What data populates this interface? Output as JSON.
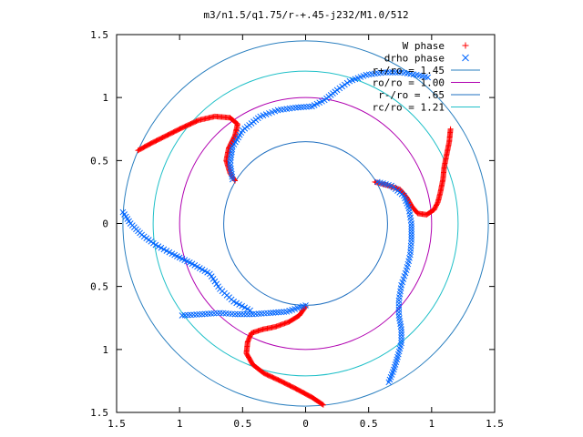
{
  "chart_data": {
    "type": "scatter",
    "title": "m3/n1.5/q1.75/r-+.45-j232/M1.0/512",
    "xlabel": "",
    "ylabel": "",
    "xlim": [
      -1.5,
      1.5
    ],
    "ylim": [
      -1.5,
      1.5
    ],
    "xticks": [
      "1.5",
      "1",
      "0.5",
      "0",
      "0.5",
      "1",
      "1.5"
    ],
    "yticks": [
      "1.5",
      "1",
      "0.5",
      "0",
      "0.5",
      "1",
      "1.5"
    ],
    "grid": false,
    "legend_position": "top-right",
    "series": [
      {
        "name": "W phase",
        "kind": "points",
        "marker": "plus",
        "color": "#ff0000",
        "curves": [
          [
            [
              0.14,
              -1.44
            ],
            [
              0.05,
              -1.38
            ],
            [
              -0.08,
              -1.31
            ],
            [
              -0.2,
              -1.25
            ],
            [
              -0.33,
              -1.19
            ],
            [
              -0.42,
              -1.12
            ],
            [
              -0.47,
              -1.03
            ],
            [
              -0.46,
              -0.94
            ],
            [
              -0.43,
              -0.87
            ],
            [
              -0.34,
              -0.84
            ],
            [
              -0.24,
              -0.82
            ],
            [
              -0.13,
              -0.78
            ],
            [
              -0.05,
              -0.73
            ],
            [
              0.0,
              -0.66
            ]
          ],
          [
            [
              1.15,
              0.75
            ],
            [
              1.14,
              0.65
            ],
            [
              1.12,
              0.55
            ],
            [
              1.1,
              0.45
            ],
            [
              1.09,
              0.35
            ],
            [
              1.07,
              0.25
            ],
            [
              1.05,
              0.17
            ],
            [
              1.02,
              0.11
            ],
            [
              0.96,
              0.07
            ],
            [
              0.89,
              0.08
            ],
            [
              0.84,
              0.14
            ],
            [
              0.8,
              0.21
            ],
            [
              0.75,
              0.27
            ],
            [
              0.66,
              0.3
            ],
            [
              0.55,
              0.33
            ]
          ],
          [
            [
              -1.33,
              0.58
            ],
            [
              -1.22,
              0.64
            ],
            [
              -1.1,
              0.7
            ],
            [
              -0.98,
              0.76
            ],
            [
              -0.85,
              0.82
            ],
            [
              -0.72,
              0.85
            ],
            [
              -0.6,
              0.84
            ],
            [
              -0.54,
              0.79
            ],
            [
              -0.56,
              0.7
            ],
            [
              -0.61,
              0.6
            ],
            [
              -0.63,
              0.5
            ],
            [
              -0.6,
              0.4
            ],
            [
              -0.56,
              0.34
            ]
          ]
        ]
      },
      {
        "name": "drho phase",
        "kind": "points",
        "marker": "cross",
        "color": "#0066ff",
        "curves": [
          [
            [
              -0.98,
              -0.73
            ],
            [
              -0.82,
              -0.72
            ],
            [
              -0.68,
              -0.71
            ],
            [
              -0.56,
              -0.72
            ],
            [
              -0.42,
              -0.72
            ],
            [
              -0.28,
              -0.71
            ],
            [
              -0.15,
              -0.7
            ],
            [
              0.0,
              -0.65
            ]
          ],
          [
            [
              0.66,
              -1.26
            ],
            [
              0.7,
              -1.16
            ],
            [
              0.73,
              -1.06
            ],
            [
              0.76,
              -0.95
            ],
            [
              0.76,
              -0.84
            ],
            [
              0.74,
              -0.73
            ],
            [
              0.74,
              -0.61
            ],
            [
              0.76,
              -0.49
            ],
            [
              0.8,
              -0.37
            ],
            [
              0.83,
              -0.25
            ],
            [
              0.84,
              -0.13
            ],
            [
              0.84,
              0.0
            ],
            [
              0.82,
              0.12
            ],
            [
              0.78,
              0.22
            ],
            [
              0.68,
              0.3
            ],
            [
              0.57,
              0.33
            ]
          ],
          [
            [
              -0.58,
              0.35
            ],
            [
              -0.6,
              0.48
            ],
            [
              -0.58,
              0.61
            ],
            [
              -0.5,
              0.74
            ],
            [
              -0.36,
              0.85
            ],
            [
              -0.22,
              0.9
            ],
            [
              -0.08,
              0.92
            ],
            [
              0.05,
              0.93
            ],
            [
              0.15,
              0.98
            ],
            [
              0.25,
              1.06
            ],
            [
              0.35,
              1.13
            ],
            [
              0.48,
              1.18
            ],
            [
              0.62,
              1.2
            ],
            [
              0.76,
              1.2
            ],
            [
              0.88,
              1.18
            ],
            [
              0.97,
              1.16
            ]
          ],
          [
            [
              -1.45,
              0.09
            ],
            [
              -1.39,
              0.0
            ],
            [
              -1.3,
              -0.09
            ],
            [
              -1.19,
              -0.17
            ],
            [
              -1.06,
              -0.24
            ],
            [
              -0.9,
              -0.32
            ],
            [
              -0.76,
              -0.4
            ],
            [
              -0.68,
              -0.52
            ],
            [
              -0.57,
              -0.62
            ],
            [
              -0.44,
              -0.69
            ]
          ]
        ]
      },
      {
        "name": "r+/ro = 1.45",
        "kind": "circle",
        "radius": 1.45,
        "color": "#2a7fbf"
      },
      {
        "name": "ro/ro = 1.00",
        "kind": "circle",
        "radius": 1.0,
        "color": "#b000b0"
      },
      {
        "name": "r-/ro = .65",
        "kind": "circle",
        "radius": 0.65,
        "color": "#1f6fc0"
      },
      {
        "name": "rc/ro = 1.21",
        "kind": "circle",
        "radius": 1.21,
        "color": "#20c0c8"
      }
    ]
  }
}
